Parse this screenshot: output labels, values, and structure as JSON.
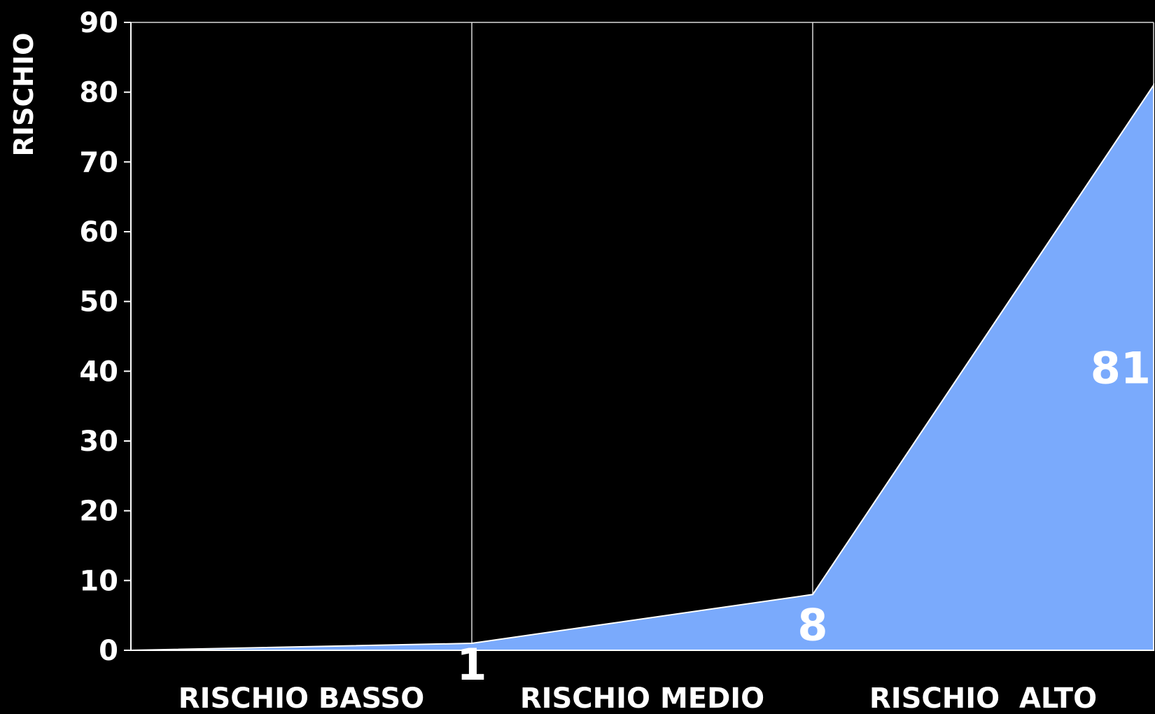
{
  "chart_data": {
    "type": "area",
    "title": "",
    "xlabel": "",
    "ylabel": "RISCHIO",
    "categories": [
      "RISCHIO BASSO",
      "RISCHIO MEDIO",
      "RISCHIO  ALTO"
    ],
    "x": [
      0,
      1,
      8,
      81
    ],
    "series": [
      {
        "values": [
          0,
          1,
          8,
          81
        ],
        "data_labels": [
          "",
          "1",
          "8",
          "81"
        ]
      }
    ],
    "ylim": [
      0,
      90
    ],
    "yticks": [
      0,
      10,
      20,
      30,
      40,
      50,
      60,
      70,
      80,
      90
    ],
    "grid": "vertical",
    "legend": "none",
    "colors": {
      "background": "#000000",
      "area_fill": "#7aaafc",
      "axis": "#ffffff",
      "text": "#ffffff"
    }
  }
}
